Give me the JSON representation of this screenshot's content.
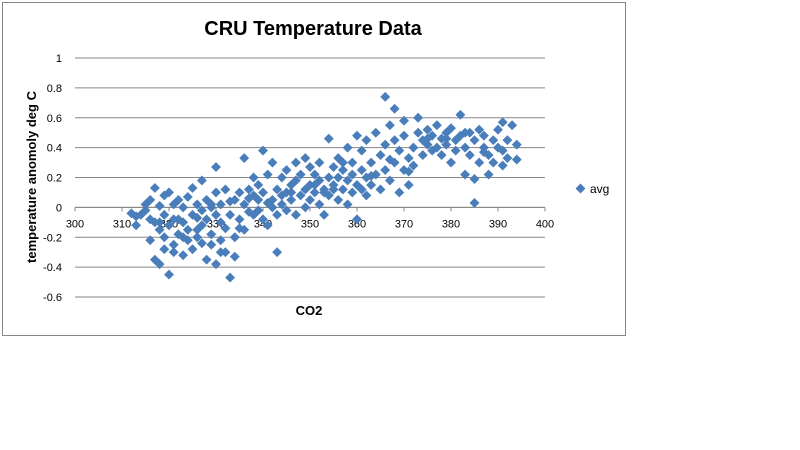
{
  "chart_data": {
    "type": "scatter",
    "title": "CRU Temperature Data",
    "xlabel": "CO2",
    "ylabel": "temperature anomoly deg C",
    "xlim": [
      300,
      400
    ],
    "ylim": [
      -0.6,
      1
    ],
    "x_ticks": [
      "300",
      "310",
      "320",
      "330",
      "340",
      "350",
      "360",
      "370",
      "380",
      "390",
      "400"
    ],
    "y_ticks": [
      "1",
      "0.8",
      "0.6",
      "0.4",
      "0.2",
      "0",
      "-0.2",
      "-0.4",
      "-0.6"
    ],
    "grid": "horizontal",
    "legend_position": "right",
    "marker_color": "#4a7ebb",
    "series": [
      {
        "name": "avg",
        "points": [
          [
            312,
            -0.04
          ],
          [
            313,
            -0.12
          ],
          [
            314,
            -0.05
          ],
          [
            315,
            -0.02
          ],
          [
            315,
            0.02
          ],
          [
            316,
            -0.08
          ],
          [
            316,
            -0.22
          ],
          [
            316,
            0.05
          ],
          [
            317,
            -0.1
          ],
          [
            317,
            0.13
          ],
          [
            317,
            -0.35
          ],
          [
            318,
            0.01
          ],
          [
            318,
            -0.15
          ],
          [
            318,
            -0.38
          ],
          [
            319,
            0.08
          ],
          [
            319,
            -0.05
          ],
          [
            319,
            -0.2
          ],
          [
            320,
            0.1
          ],
          [
            320,
            -0.45
          ],
          [
            320,
            -0.12
          ],
          [
            321,
            0.02
          ],
          [
            321,
            -0.25
          ],
          [
            321,
            -0.3
          ],
          [
            322,
            -0.08
          ],
          [
            322,
            0.05
          ],
          [
            322,
            -0.18
          ],
          [
            323,
            -0.32
          ],
          [
            323,
            0.0
          ],
          [
            323,
            -0.1
          ],
          [
            324,
            -0.22
          ],
          [
            324,
            0.07
          ],
          [
            325,
            -0.05
          ],
          [
            325,
            -0.28
          ],
          [
            325,
            0.13
          ],
          [
            326,
            -0.15
          ],
          [
            326,
            0.02
          ],
          [
            326,
            -0.2
          ],
          [
            327,
            -0.02
          ],
          [
            327,
            -0.12
          ],
          [
            327,
            0.18
          ],
          [
            328,
            -0.35
          ],
          [
            328,
            -0.08
          ],
          [
            328,
            0.05
          ],
          [
            329,
            0.02
          ],
          [
            329,
            -0.18
          ],
          [
            329,
            -0.25
          ],
          [
            330,
            0.27
          ],
          [
            330,
            -0.05
          ],
          [
            330,
            -0.38
          ],
          [
            330,
            0.1
          ],
          [
            331,
            -0.1
          ],
          [
            331,
            -0.22
          ],
          [
            331,
            0.02
          ],
          [
            332,
            -0.14
          ],
          [
            332,
            0.12
          ],
          [
            332,
            -0.3
          ],
          [
            333,
            -0.47
          ],
          [
            333,
            -0.05
          ],
          [
            334,
            0.05
          ],
          [
            334,
            -0.2
          ],
          [
            334,
            -0.33
          ],
          [
            335,
            0.1
          ],
          [
            335,
            -0.08
          ],
          [
            336,
            0.33
          ],
          [
            336,
            0.02
          ],
          [
            336,
            -0.15
          ],
          [
            337,
            0.12
          ],
          [
            337,
            -0.03
          ],
          [
            338,
            0.08
          ],
          [
            338,
            0.2
          ],
          [
            338,
            -0.05
          ],
          [
            339,
            0.15
          ],
          [
            339,
            -0.02
          ],
          [
            339,
            0.05
          ],
          [
            340,
            0.38
          ],
          [
            340,
            0.1
          ],
          [
            340,
            -0.08
          ],
          [
            341,
            0.22
          ],
          [
            341,
            0.03
          ],
          [
            341,
            -0.12
          ],
          [
            342,
            0.3
          ],
          [
            342,
            0.05
          ],
          [
            343,
            -0.3
          ],
          [
            343,
            0.12
          ],
          [
            343,
            -0.05
          ],
          [
            344,
            0.08
          ],
          [
            344,
            0.2
          ],
          [
            345,
            -0.02
          ],
          [
            345,
            0.1
          ],
          [
            345,
            0.25
          ],
          [
            346,
            0.05
          ],
          [
            346,
            0.15
          ],
          [
            347,
            -0.05
          ],
          [
            347,
            0.18
          ],
          [
            347,
            0.3
          ],
          [
            348,
            0.08
          ],
          [
            348,
            0.22
          ],
          [
            349,
            0.12
          ],
          [
            349,
            0.0
          ],
          [
            349,
            0.33
          ],
          [
            350,
            0.15
          ],
          [
            350,
            0.05
          ],
          [
            350,
            0.27
          ],
          [
            351,
            0.1
          ],
          [
            351,
            0.22
          ],
          [
            352,
            0.02
          ],
          [
            352,
            0.18
          ],
          [
            352,
            0.3
          ],
          [
            353,
            0.12
          ],
          [
            353,
            -0.05
          ],
          [
            354,
            0.2
          ],
          [
            354,
            0.08
          ],
          [
            354,
            0.46
          ],
          [
            355,
            0.15
          ],
          [
            355,
            0.27
          ],
          [
            356,
            0.05
          ],
          [
            356,
            0.2
          ],
          [
            356,
            0.33
          ],
          [
            357,
            0.12
          ],
          [
            357,
            0.25
          ],
          [
            358,
            0.18
          ],
          [
            358,
            0.02
          ],
          [
            358,
            0.4
          ],
          [
            359,
            0.22
          ],
          [
            359,
            0.1
          ],
          [
            359,
            0.3
          ],
          [
            360,
            0.48
          ],
          [
            360,
            0.15
          ],
          [
            360,
            -0.08
          ],
          [
            361,
            0.25
          ],
          [
            361,
            0.38
          ],
          [
            362,
            0.2
          ],
          [
            362,
            0.08
          ],
          [
            362,
            0.45
          ],
          [
            363,
            0.15
          ],
          [
            363,
            0.3
          ],
          [
            364,
            0.22
          ],
          [
            364,
            0.5
          ],
          [
            365,
            0.12
          ],
          [
            365,
            0.35
          ],
          [
            366,
            0.74
          ],
          [
            366,
            0.25
          ],
          [
            366,
            0.42
          ],
          [
            367,
            0.55
          ],
          [
            367,
            0.18
          ],
          [
            368,
            0.66
          ],
          [
            368,
            0.3
          ],
          [
            368,
            0.45
          ],
          [
            369,
            0.1
          ],
          [
            369,
            0.38
          ],
          [
            370,
            0.58
          ],
          [
            370,
            0.25
          ],
          [
            370,
            0.48
          ],
          [
            371,
            0.33
          ],
          [
            371,
            0.15
          ],
          [
            372,
            0.4
          ],
          [
            372,
            0.28
          ],
          [
            373,
            0.5
          ],
          [
            373,
            0.6
          ],
          [
            374,
            0.45
          ],
          [
            374,
            0.35
          ],
          [
            375,
            0.52
          ],
          [
            375,
            0.42
          ],
          [
            376,
            0.48
          ],
          [
            376,
            0.38
          ],
          [
            377,
            0.55
          ],
          [
            377,
            0.4
          ],
          [
            378,
            0.46
          ],
          [
            378,
            0.35
          ],
          [
            379,
            0.5
          ],
          [
            379,
            0.42
          ],
          [
            380,
            0.3
          ],
          [
            380,
            0.53
          ],
          [
            381,
            0.45
          ],
          [
            381,
            0.38
          ],
          [
            382,
            0.62
          ],
          [
            382,
            0.48
          ],
          [
            383,
            0.4
          ],
          [
            383,
            0.22
          ],
          [
            384,
            0.5
          ],
          [
            384,
            0.35
          ],
          [
            385,
            0.03
          ],
          [
            385,
            0.45
          ],
          [
            385,
            0.19
          ],
          [
            386,
            0.3
          ],
          [
            386,
            0.52
          ],
          [
            387,
            0.4
          ],
          [
            387,
            0.48
          ],
          [
            388,
            0.35
          ],
          [
            388,
            0.22
          ],
          [
            389,
            0.45
          ],
          [
            389,
            0.3
          ],
          [
            390,
            0.52
          ],
          [
            390,
            0.4
          ],
          [
            391,
            0.57
          ],
          [
            391,
            0.28
          ],
          [
            392,
            0.45
          ],
          [
            392,
            0.33
          ],
          [
            393,
            0.55
          ],
          [
            394,
            0.42
          ],
          [
            394,
            0.32
          ],
          [
            313,
            -0.06
          ],
          [
            318,
            -0.1
          ],
          [
            321,
            -0.08
          ],
          [
            324,
            -0.15
          ],
          [
            327,
            -0.24
          ],
          [
            329,
            0.0
          ],
          [
            333,
            0.04
          ],
          [
            337,
            0.06
          ],
          [
            342,
            0.0
          ],
          [
            346,
            0.1
          ],
          [
            351,
            0.15
          ],
          [
            355,
            0.12
          ],
          [
            357,
            0.3
          ],
          [
            361,
            0.12
          ],
          [
            363,
            0.21
          ],
          [
            367,
            0.32
          ],
          [
            371,
            0.24
          ],
          [
            375,
            0.46
          ],
          [
            379,
            0.46
          ],
          [
            383,
            0.5
          ],
          [
            387,
            0.37
          ],
          [
            391,
            0.38
          ],
          [
            319,
            -0.28
          ],
          [
            323,
            -0.2
          ],
          [
            326,
            -0.07
          ],
          [
            331,
            -0.3
          ],
          [
            335,
            -0.14
          ],
          [
            344,
            0.02
          ],
          [
            353,
            0.1
          ]
        ]
      }
    ]
  }
}
